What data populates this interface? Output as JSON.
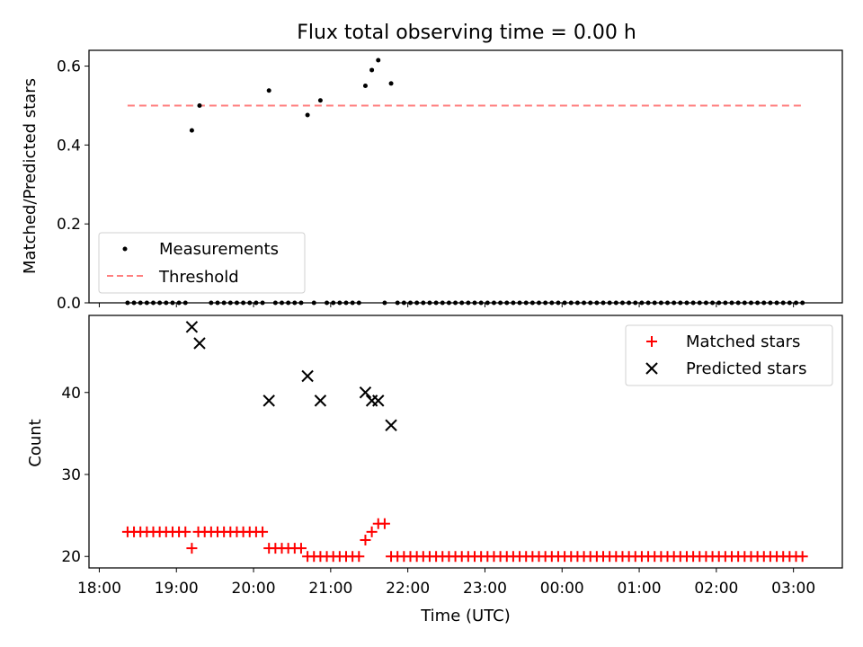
{
  "figure": {
    "title": "Flux total observing time = 0.00 h"
  },
  "colors": {
    "measurements": "#000000",
    "threshold": "#ff7f7f",
    "matched": "#ff0000",
    "predicted": "#000000"
  },
  "chart_data": [
    {
      "type": "scatter",
      "panel": "top",
      "title": "Flux total observing time = 0.00 h",
      "xlabel": "",
      "ylabel": "Matched/Predicted stars",
      "xlim": [
        "17:52",
        "03:38"
      ],
      "ylim": [
        0,
        0.64
      ],
      "yticks": [
        0.0,
        0.2,
        0.4,
        0.6
      ],
      "xticks": [
        "18:00",
        "19:00",
        "20:00",
        "21:00",
        "22:00",
        "23:00",
        "00:00",
        "01:00",
        "02:00",
        "03:00"
      ],
      "grid": false,
      "legend": {
        "position": "bottom-left",
        "entries": [
          "Measurements",
          "Threshold"
        ]
      },
      "series": [
        {
          "name": "Measurements",
          "marker": "dot",
          "nonzero_points": [
            {
              "x": "19:12",
              "y": 0.437
            },
            {
              "x": "19:18",
              "y": 0.5
            },
            {
              "x": "20:12",
              "y": 0.538
            },
            {
              "x": "20:42",
              "y": 0.476
            },
            {
              "x": "20:52",
              "y": 0.513
            },
            {
              "x": "21:27",
              "y": 0.55
            },
            {
              "x": "21:32",
              "y": 0.59
            },
            {
              "x": "21:37",
              "y": 0.615
            },
            {
              "x": "21:47",
              "y": 0.556
            }
          ],
          "zero_points_x": {
            "range": [
              "18:22",
              "03:07"
            ],
            "step_minutes": 5,
            "exclude_ranges": [
              [
                "19:08",
                "19:22"
              ],
              [
                "20:08",
                "20:13"
              ],
              [
                "20:38",
                "20:43"
              ],
              [
                "20:48",
                "20:53"
              ],
              [
                "21:23",
                "21:34"
              ],
              [
                "21:37",
                "21:38"
              ],
              [
                "21:43",
                "21:48"
              ]
            ]
          }
        },
        {
          "name": "Threshold",
          "style": "dashed",
          "x": [
            "18:22",
            "03:07"
          ],
          "y": [
            0.5,
            0.5
          ]
        }
      ]
    },
    {
      "type": "scatter",
      "panel": "bottom",
      "xlabel": "Time (UTC)",
      "ylabel": "Count",
      "xlim": [
        "17:52",
        "03:38"
      ],
      "ylim": [
        18.6,
        49.4
      ],
      "yticks": [
        20,
        30,
        40
      ],
      "xticks": [
        "18:00",
        "19:00",
        "20:00",
        "21:00",
        "22:00",
        "23:00",
        "00:00",
        "01:00",
        "02:00",
        "03:00"
      ],
      "grid": false,
      "legend": {
        "position": "top-right",
        "entries": [
          "Matched stars",
          "Predicted stars"
        ]
      },
      "series": [
        {
          "name": "Matched stars",
          "marker": "plus",
          "segments": [
            {
              "from": "18:22",
              "to": "19:07",
              "y": 23
            },
            {
              "from": "19:12",
              "to": "19:12",
              "y": 21
            },
            {
              "from": "19:17",
              "to": "20:07",
              "y": 23
            },
            {
              "from": "20:12",
              "to": "20:37",
              "y": 21
            },
            {
              "from": "20:42",
              "to": "21:22",
              "y": 20
            },
            {
              "from": "21:27",
              "to": "21:27",
              "y": 22
            },
            {
              "from": "21:32",
              "to": "21:32",
              "y": 23
            },
            {
              "from": "21:37",
              "to": "21:42",
              "y": 24
            },
            {
              "from": "21:47",
              "to": "03:07",
              "y": 20
            }
          ]
        },
        {
          "name": "Predicted stars",
          "marker": "x",
          "points": [
            {
              "x": "19:12",
              "y": 48
            },
            {
              "x": "19:18",
              "y": 46
            },
            {
              "x": "20:12",
              "y": 39
            },
            {
              "x": "20:42",
              "y": 42
            },
            {
              "x": "20:52",
              "y": 39
            },
            {
              "x": "21:27",
              "y": 40
            },
            {
              "x": "21:32",
              "y": 39
            },
            {
              "x": "21:37",
              "y": 39
            },
            {
              "x": "21:47",
              "y": 36
            }
          ]
        }
      ]
    }
  ]
}
